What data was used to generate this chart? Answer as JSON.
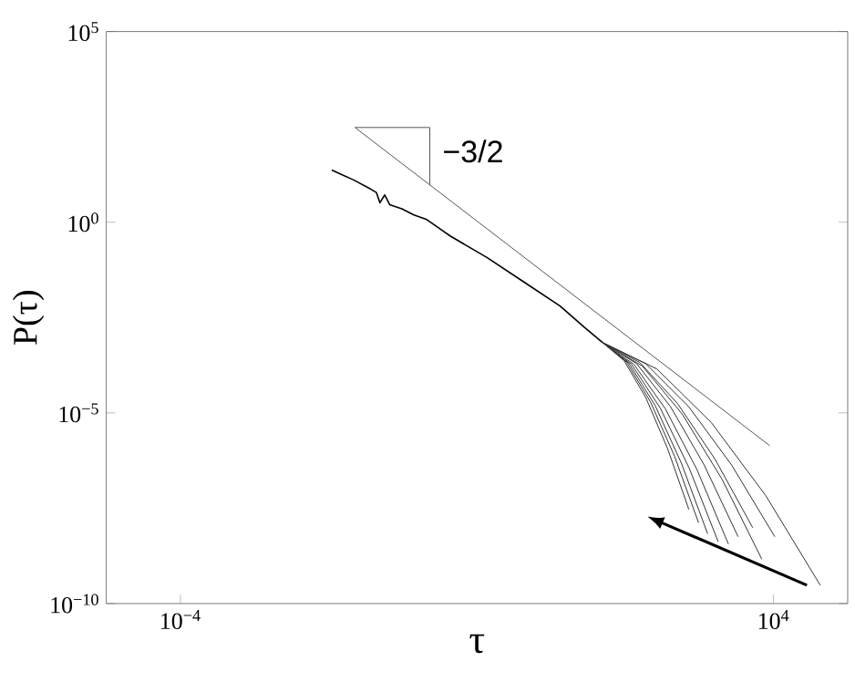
{
  "chart_data": {
    "type": "line",
    "xlabel": "τ",
    "ylabel": "P(τ)",
    "log": "xy",
    "xlim": [
      1e-05,
      100000
    ],
    "ylim": [
      1e-10,
      100000
    ],
    "xticks": [
      {
        "value": 0.0001,
        "label": "10$^{−4}$"
      },
      {
        "value": 10000,
        "label": "10$^{4}$"
      }
    ],
    "yticks": [
      {
        "value": 1e-10,
        "label": "10$^{−10}$"
      },
      {
        "value": 1e-05,
        "label": "10$^{−5}$"
      },
      {
        "value": 1,
        "label": "10$^{0}$"
      },
      {
        "value": 100000,
        "label": "10$^{5}$"
      }
    ],
    "annotations": [
      {
        "text": "−3/2",
        "x": 0.28,
        "y": 73
      }
    ],
    "series": [
      {
        "color": "#555555",
        "x": [
          0.0226,
          8890
        ],
        "values": [
          305,
          1.38e-06
        ]
      },
      {
        "color": "#555555",
        "x": [
          0.0226,
          0.231,
          0.231
        ],
        "values": [
          305,
          305,
          9.3
        ]
      },
      {
        "color": "#000000",
        "x": [
          0.011,
          0.0152,
          0.0214,
          0.0362,
          0.0439,
          0.0491,
          0.057,
          0.0664,
          0.0968,
          0.141,
          0.206,
          0.439,
          1.36,
          4.24,
          13.2,
          28.0,
          49.3
        ],
        "values": [
          23.4,
          17.5,
          13.0,
          7.52,
          6.03,
          3.24,
          5.21,
          2.9,
          2.24,
          1.55,
          1.2,
          0.431,
          0.119,
          0.0275,
          0.00635,
          0.00176,
          0.000703
        ]
      },
      {
        "color": "#333333",
        "x": [
          49.3,
          96.4,
          189,
          369,
          721
        ],
        "values": [
          0.000703,
          0.000234,
          2.52e-05,
          1.21e-06,
          2.94e-08
        ]
      },
      {
        "color": "#333333",
        "x": [
          49.3,
          104,
          219,
          462,
          975
        ],
        "values": [
          0.000703,
          0.000215,
          1.93e-05,
          7.3e-07,
          1.31e-08
        ]
      },
      {
        "color": "#333333",
        "x": [
          49.3,
          112,
          253,
          571,
          1290
        ],
        "values": [
          0.000703,
          0.0002,
          1.56e-05,
          4.81e-07,
          6.78e-09
        ]
      },
      {
        "color": "#333333",
        "x": [
          49.3,
          121,
          297,
          728,
          1790
        ],
        "values": [
          0.000703,
          0.00019,
          1.33e-05,
          3.56e-07,
          4.21e-09
        ]
      },
      {
        "color": "#333333",
        "x": [
          49.3,
          131,
          348,
          927,
          2460
        ],
        "values": [
          0.000703,
          0.000187,
          1.27e-05,
          3.25e-07,
          3.64e-09
        ]
      },
      {
        "color": "#333333",
        "x": [
          49.3,
          142,
          406,
          1160,
          3330
        ],
        "values": [
          0.000703,
          0.000196,
          1.47e-05,
          4.29e-07,
          5.65e-09
        ]
      },
      {
        "color": "#333333",
        "x": [
          49.3,
          158,
          508,
          1630,
          5240
        ],
        "values": [
          0.000703,
          0.000208,
          1.75e-05,
          6.05e-07,
          9.77e-09
        ]
      },
      {
        "color": "#333333",
        "x": [
          49.3,
          170,
          586,
          2020,
          6950
        ],
        "values": [
          0.000703,
          0.000169,
          9.35e-06,
          1.82e-07,
          1.45e-09
        ]
      },
      {
        "color": "#333333",
        "x": [
          49.3,
          188,
          714,
          2720,
          10400
        ],
        "values": [
          0.000703,
          0.000196,
          1.47e-05,
          4.29e-07,
          5.65e-09
        ]
      },
      {
        "color": "#333333",
        "x": [
          49.3,
          267,
          1450,
          7870,
          42700
        ],
        "values": [
          0.000703,
          0.000142,
          5.56e-06,
          6.73e-08,
          3.01e-10
        ]
      }
    ]
  }
}
